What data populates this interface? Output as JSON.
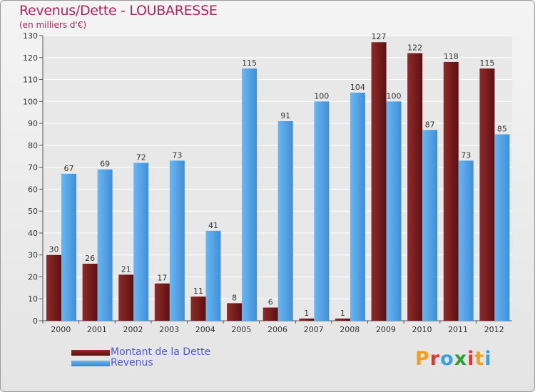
{
  "title": "Revenus/Dette - LOUBARESSE",
  "subtitle": "(en milliers d'€)",
  "logo": {
    "letters": [
      "P",
      "r",
      "o",
      "x",
      "i",
      "t",
      "i"
    ],
    "colors": [
      "#f0a020",
      "#e0382e",
      "#3aa0e0",
      "#2e9a3a",
      "#e0382e",
      "#f0a020",
      "#3aa0e0"
    ]
  },
  "chart_data": {
    "type": "bar",
    "categories": [
      "2000",
      "2001",
      "2002",
      "2003",
      "2004",
      "2005",
      "2006",
      "2007",
      "2008",
      "2009",
      "2010",
      "2011",
      "2012"
    ],
    "series": [
      {
        "name": "Montant de la Dette",
        "values": [
          30,
          26,
          21,
          17,
          11,
          8,
          6,
          1,
          1,
          127,
          122,
          118,
          115
        ],
        "color": "#7a1c1c"
      },
      {
        "name": "Revenus",
        "values": [
          67,
          69,
          72,
          73,
          41,
          115,
          91,
          100,
          104,
          100,
          87,
          73,
          85
        ],
        "color": "#5aa6e6"
      }
    ],
    "ylim": [
      0,
      130
    ],
    "yticks": [
      0,
      10,
      20,
      30,
      40,
      50,
      60,
      70,
      80,
      90,
      100,
      110,
      120,
      130
    ],
    "grid": true,
    "legend_position": "bottom-left"
  }
}
